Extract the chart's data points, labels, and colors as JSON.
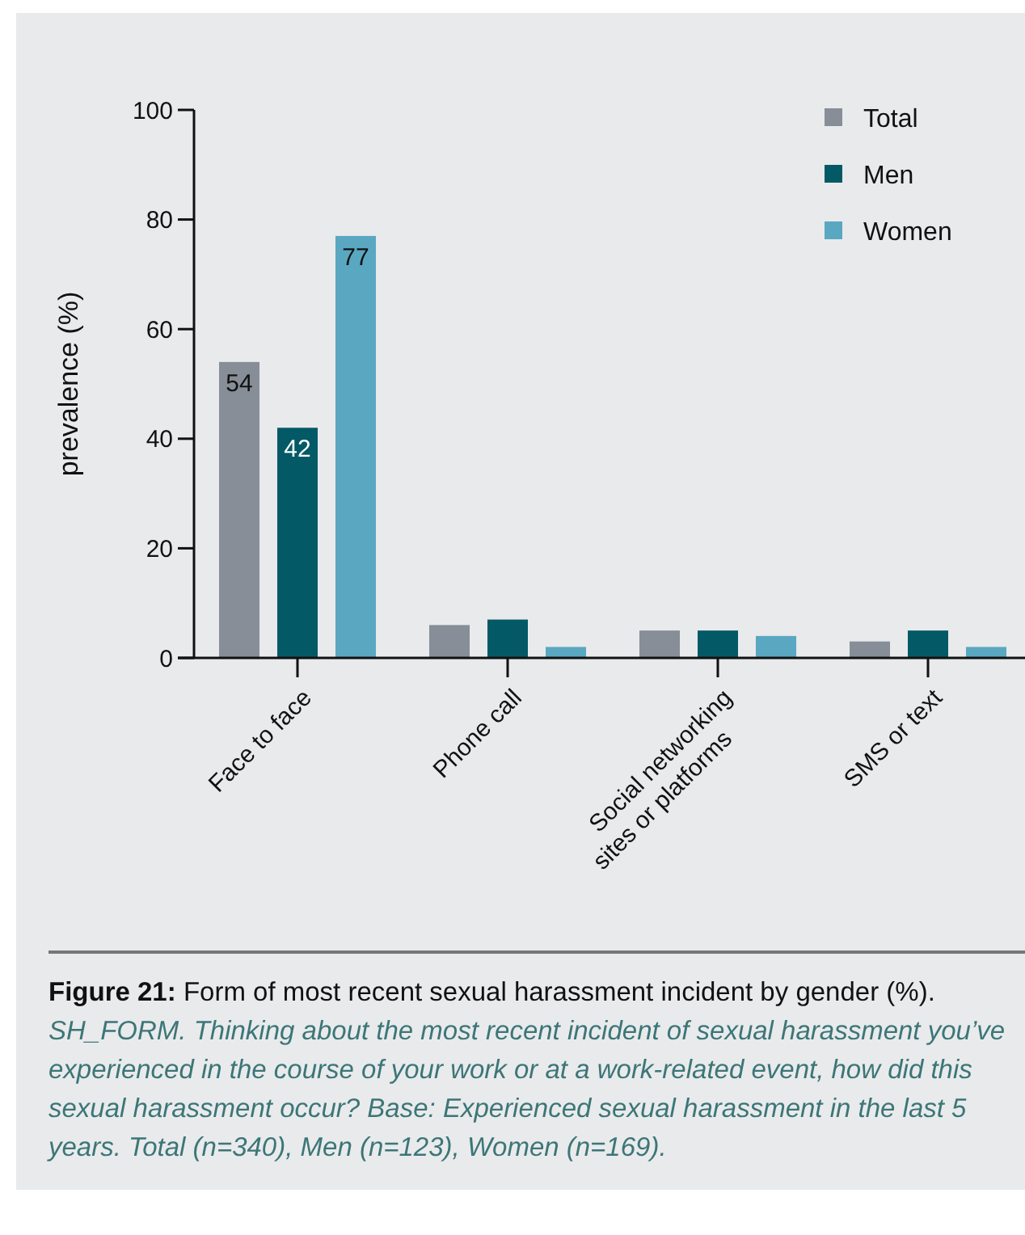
{
  "chart_data": {
    "type": "bar",
    "ylabel": "prevalence (%)",
    "categories": [
      "Face to face",
      "Phone call",
      "Social networking sites or platforms",
      "SMS or text"
    ],
    "series": [
      {
        "name": "Total",
        "color": "#878e98",
        "values": [
          54,
          6,
          5,
          3
        ],
        "value_labels": [
          "54",
          null,
          null,
          null
        ]
      },
      {
        "name": "Men",
        "color": "#035a66",
        "values": [
          42,
          7,
          5,
          5
        ],
        "value_labels": [
          "42",
          null,
          null,
          null
        ]
      },
      {
        "name": "Women",
        "color": "#5aa7c2",
        "values": [
          77,
          2,
          4,
          2
        ],
        "value_labels": [
          "77",
          null,
          null,
          null
        ]
      }
    ],
    "ylim": [
      0,
      100
    ],
    "yticks": [
      0,
      20,
      40,
      60,
      80,
      100
    ],
    "grid": false,
    "legend": "top right",
    "annotations": [
      "Figure 21:",
      "Form of most recent sexual harassment incident by gender (%).",
      "SH_FORM. Thinking about the most recent incident of sexual harassment you’ve experienced in the course of your work or at a work-related event, how did this sexual harassment occur? Base: Experienced sexual harassment in the last 5 years. Total (n=340), Men (n=123), Women (n=169)."
    ]
  }
}
